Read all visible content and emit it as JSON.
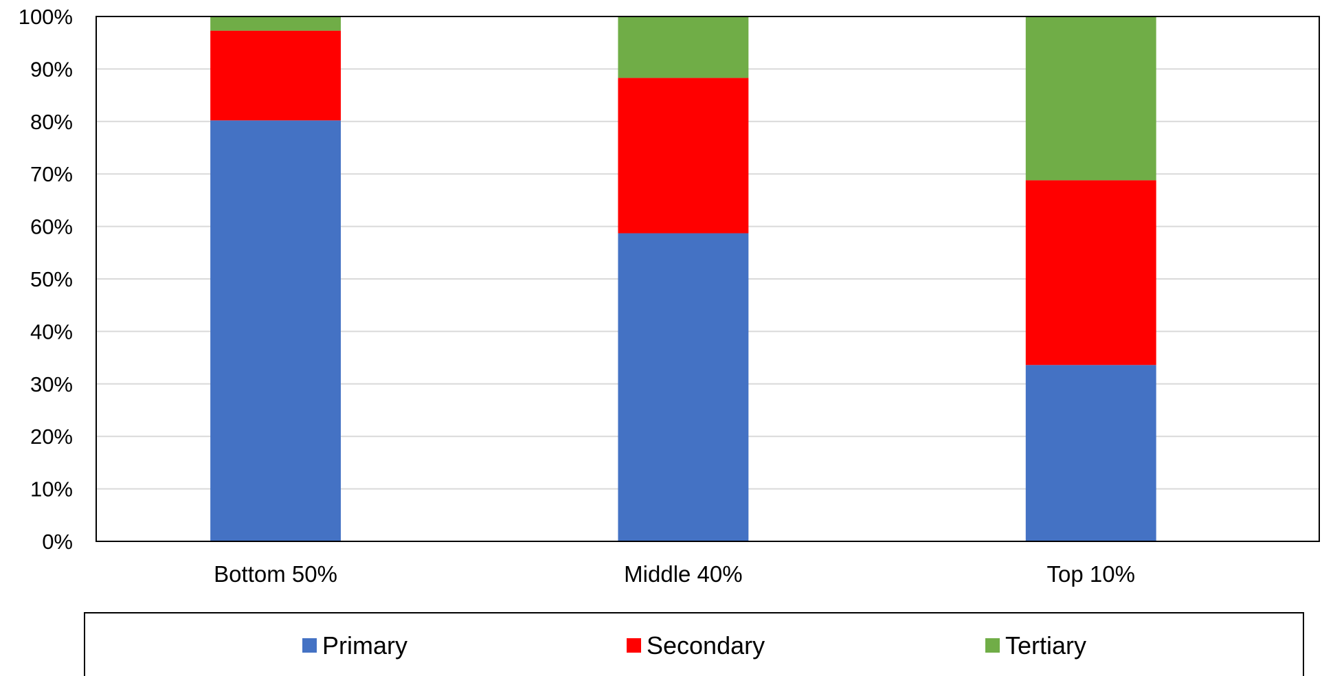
{
  "chart_data": {
    "type": "bar",
    "stacked": true,
    "categories": [
      "Bottom 50%",
      "Middle 40%",
      "Top 10%"
    ],
    "series": [
      {
        "name": "Primary",
        "color": "#4472C4",
        "values": [
          80.2,
          58.7,
          33.6
        ]
      },
      {
        "name": "Secondary",
        "color": "#FF0000",
        "values": [
          17.1,
          29.6,
          35.2
        ]
      },
      {
        "name": "Tertiary",
        "color": "#70AD47",
        "values": [
          2.7,
          11.7,
          31.2
        ]
      }
    ],
    "ylim": [
      0,
      100
    ],
    "yticks": [
      "0%",
      "10%",
      "20%",
      "30%",
      "40%",
      "50%",
      "60%",
      "70%",
      "80%",
      "90%",
      "100%"
    ],
    "grid": true,
    "legend_position": "bottom",
    "title": "",
    "xlabel": "",
    "ylabel": ""
  }
}
